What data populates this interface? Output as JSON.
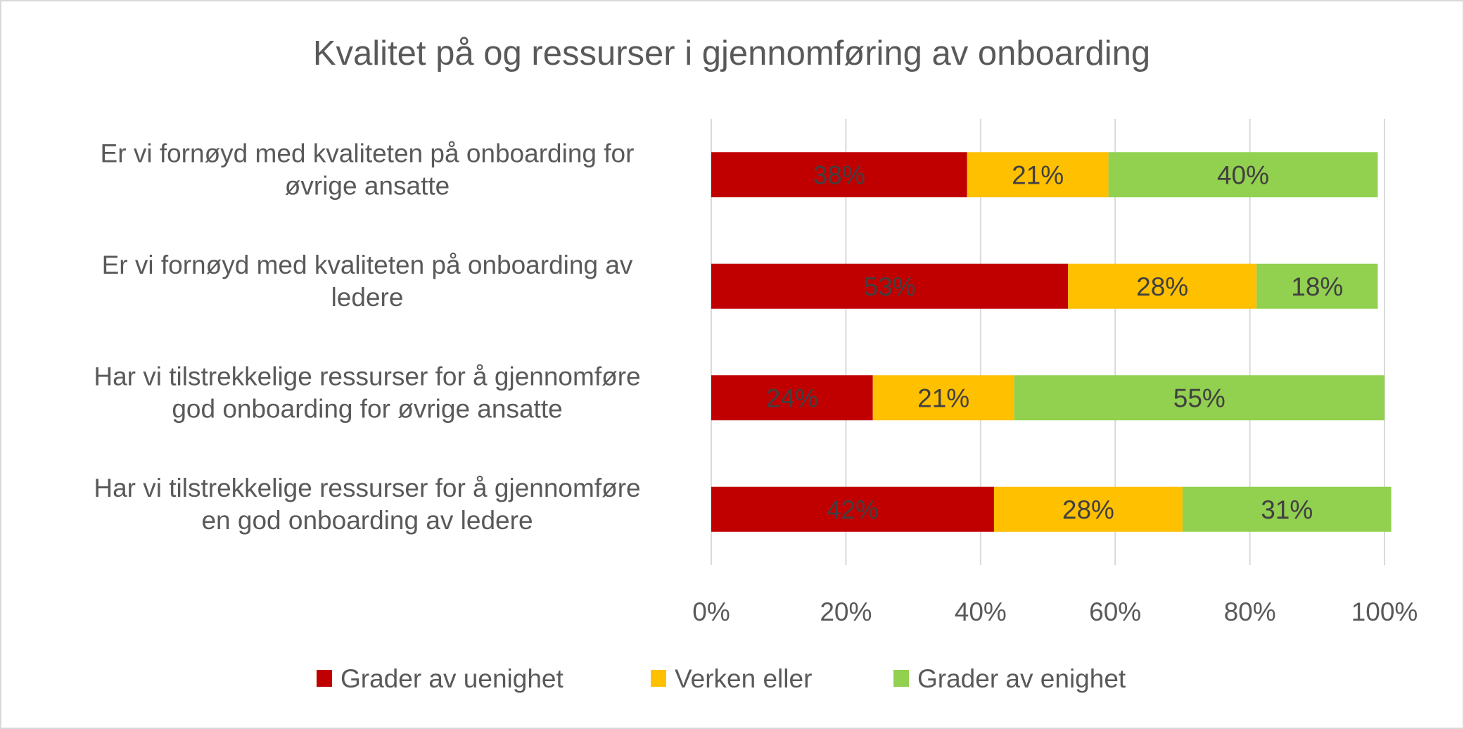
{
  "chart_data": {
    "type": "bar",
    "orientation": "horizontal",
    "stacked": true,
    "title": "Kvalitet på og ressurser i gjennomføring av onboarding",
    "categories": [
      [
        "Er vi fornøyd med kvaliteten på onboarding for",
        "øvrige ansatte"
      ],
      [
        "Er vi fornøyd med kvaliteten på onboarding av",
        "ledere"
      ],
      [
        "Har vi tilstrekkelige ressurser for  å gjennomføre",
        "god onboarding for øvrige ansatte"
      ],
      [
        "Har vi tilstrekkelige ressurser for  å gjennomføre",
        "en god onboarding av ledere"
      ]
    ],
    "series": [
      {
        "name": "Grader av uenighet",
        "color": "#C00000",
        "values": [
          38,
          53,
          24,
          42
        ]
      },
      {
        "name": "Verken eller",
        "color": "#FFC000",
        "values": [
          21,
          28,
          21,
          28
        ]
      },
      {
        "name": "Grader av enighet",
        "color": "#92D050",
        "values": [
          40,
          18,
          55,
          31
        ]
      }
    ],
    "xlim": [
      0,
      100
    ],
    "xticks": [
      "0%",
      "20%",
      "40%",
      "60%",
      "80%",
      "100%"
    ],
    "xlabel": "",
    "ylabel": "",
    "grid": "vertical",
    "legend": "bottom",
    "data_label_color": "#404040"
  }
}
